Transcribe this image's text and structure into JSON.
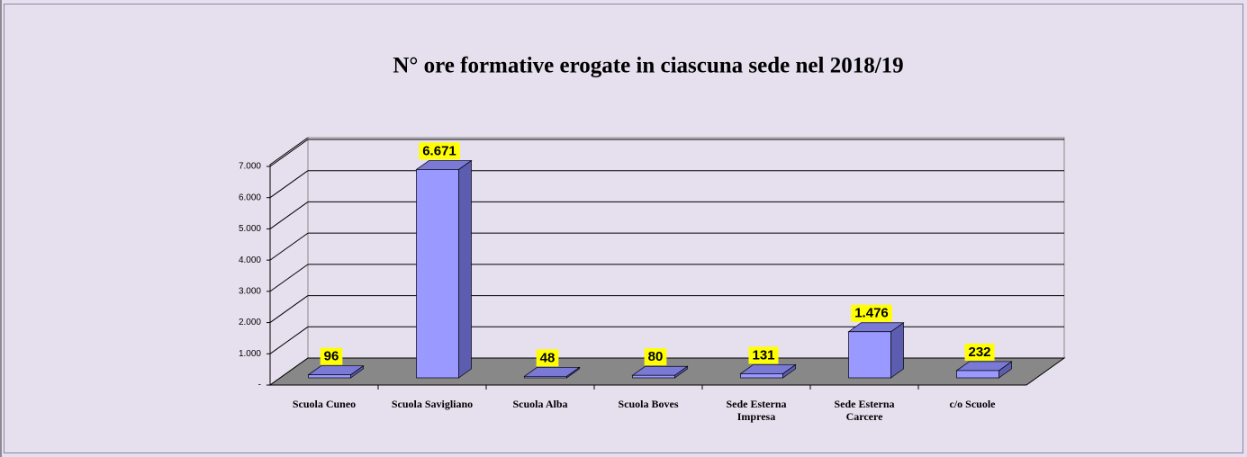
{
  "chart_data": {
    "type": "bar3d",
    "title": "N° ore formative erogate in ciascuna sede nel 2018/19",
    "categories": [
      "Scuola Cuneo",
      "Scuola Savigliano",
      "Scuola Alba",
      "Scuola Boves",
      "Sede Esterna Impresa",
      "Sede Esterna Carcere",
      "c/o Scuole"
    ],
    "values": [
      96,
      6671,
      48,
      80,
      131,
      1476,
      232
    ],
    "value_labels": [
      "96",
      "6.671",
      "48",
      "80",
      "131",
      "1.476",
      "232"
    ],
    "color": "#9999ff",
    "ylim": [
      0,
      7000
    ],
    "yticks": [
      {
        "value": 0,
        "label": "-"
      },
      {
        "value": 1000,
        "label": "1.000"
      },
      {
        "value": 2000,
        "label": "2.000"
      },
      {
        "value": 3000,
        "label": "3.000"
      },
      {
        "value": 4000,
        "label": "4.000"
      },
      {
        "value": 5000,
        "label": "5.000"
      },
      {
        "value": 6000,
        "label": "6.000"
      },
      {
        "value": 7000,
        "label": "7.000"
      }
    ],
    "grid": true
  }
}
